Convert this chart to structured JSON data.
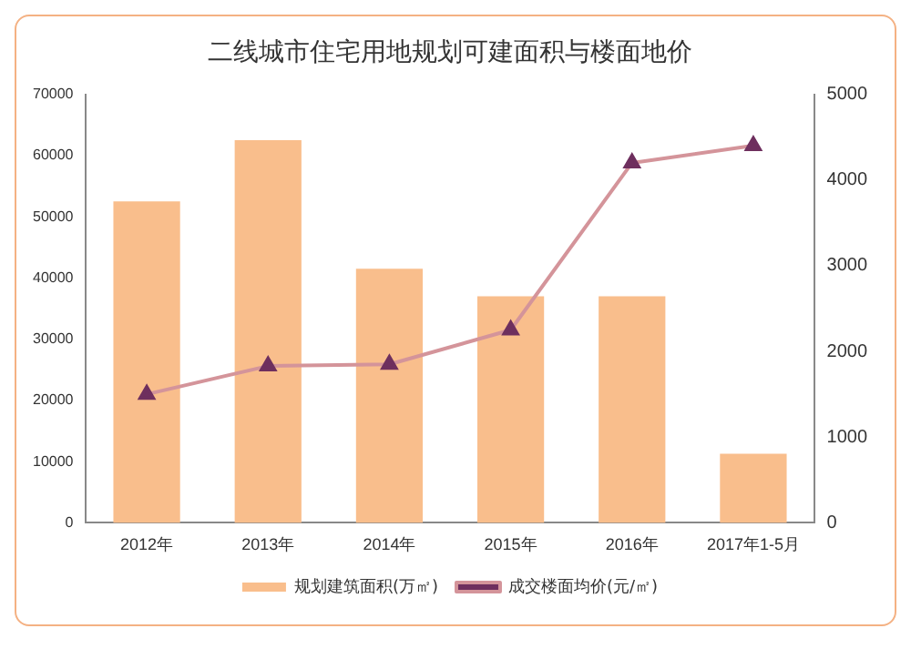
{
  "chart_data": {
    "type": "bar",
    "title": "二线城市住宅用地规划可建面积与楼面地价",
    "categories": [
      "2012年",
      "2013年",
      "2014年",
      "2015年",
      "2016年",
      "2017年1-5月"
    ],
    "series": [
      {
        "name": "规划建筑面积(万㎡)",
        "color": "#f9be8c",
        "values": [
          52500,
          62500,
          41500,
          37000,
          37000,
          11300
        ]
      },
      {
        "name": "成交楼面均价(元/㎡)",
        "type": "line",
        "axis": "y2",
        "color": "#d4949a",
        "values": [
          1500,
          1830,
          1850,
          2250,
          4200,
          4400
        ]
      }
    ],
    "ylim": [
      0,
      70000
    ],
    "yticks": [
      0,
      10000,
      20000,
      30000,
      40000,
      50000,
      60000,
      70000
    ],
    "y2lim": [
      0,
      5000
    ],
    "y2ticks": [
      0,
      1000,
      2000,
      3000,
      4000,
      5000
    ],
    "marker": "triangle",
    "grid": false,
    "legend": "bottom"
  }
}
